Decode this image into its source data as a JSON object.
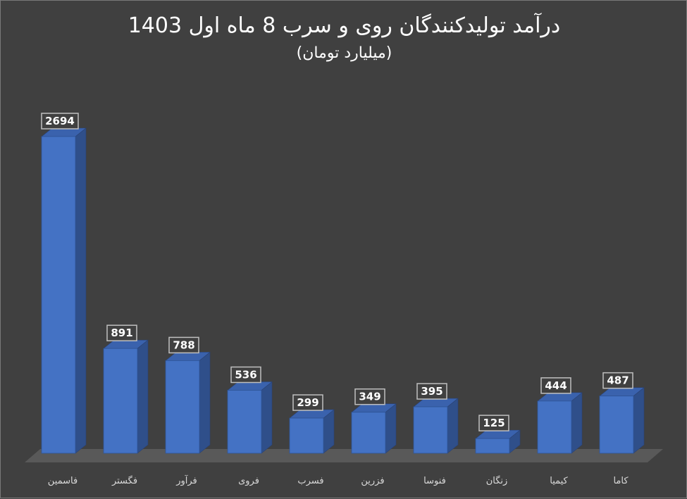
{
  "chart_data": {
    "type": "bar",
    "title": "درآمد تولیدکنندگان روی و سرب 8 ماه اول 1403",
    "subtitle": "(میلیارد تومان)",
    "categories": [
      "فاسمین",
      "فگستر",
      "فرآور",
      "فروی",
      "فسرب",
      "فزرین",
      "فنوسا",
      "زنگان",
      "کیمیا",
      "کاما"
    ],
    "values": [
      2694,
      891,
      788,
      536,
      299,
      349,
      395,
      125,
      444,
      487
    ],
    "ylim": [
      0,
      2694
    ],
    "grid": false,
    "legend": "none",
    "colors": {
      "bar_front": "#4472c4",
      "bar_side": "#2f4f8a",
      "bar_top": "#3a62ad",
      "floor": "#595959",
      "background": "#404040",
      "label_box": "#404040",
      "label_border": "#bfbfbf"
    }
  }
}
